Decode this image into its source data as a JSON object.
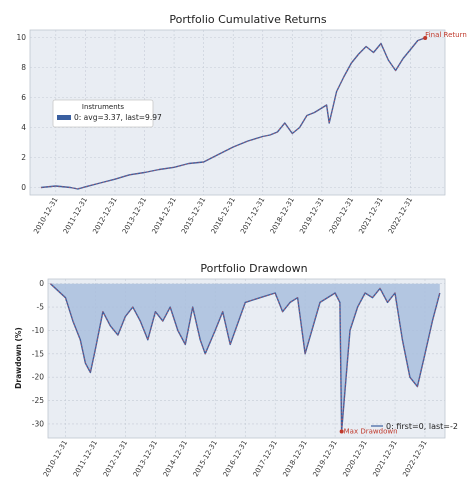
{
  "chart_data": [
    {
      "type": "line",
      "title": "Portfolio Cumulative Returns",
      "xlabel": "",
      "ylabel": "",
      "x_ticks": [
        "2010-12-31",
        "2011-12-31",
        "2012-12-31",
        "2013-12-31",
        "2014-12-31",
        "2015-12-31",
        "2016-12-31",
        "2017-12-31",
        "2018-12-31",
        "2019-12-31",
        "2020-12-31",
        "2021-12-31",
        "2022-12-31"
      ],
      "y_ticks": [
        0,
        2,
        4,
        6,
        8,
        10
      ],
      "ylim": [
        -0.5,
        10.5
      ],
      "grid": true,
      "background": "#e9edf3",
      "legend": {
        "title": "Instruments",
        "placement": "center-left",
        "entries": [
          "0: avg=3.37, last=9.97"
        ]
      },
      "series": [
        {
          "name": "0: avg=3.37, last=9.97",
          "color": "#3a5fa0",
          "x": [
            "2010-06-30",
            "2010-12-31",
            "2011-06-30",
            "2011-09-30",
            "2011-12-31",
            "2012-06-30",
            "2012-12-31",
            "2013-06-30",
            "2013-12-31",
            "2014-06-30",
            "2014-12-31",
            "2015-06-30",
            "2015-12-31",
            "2016-06-30",
            "2016-12-31",
            "2017-06-30",
            "2017-12-31",
            "2018-03-31",
            "2018-06-30",
            "2018-09-30",
            "2018-12-31",
            "2019-03-31",
            "2019-06-30",
            "2019-09-30",
            "2019-12-31",
            "2020-02-28",
            "2020-03-31",
            "2020-06-30",
            "2020-09-30",
            "2020-12-31",
            "2021-03-31",
            "2021-06-30",
            "2021-09-30",
            "2021-12-31",
            "2022-03-31",
            "2022-06-30",
            "2022-09-30",
            "2022-12-31",
            "2023-03-31",
            "2023-06-30"
          ],
          "y": [
            0.0,
            0.1,
            0.0,
            -0.1,
            0.05,
            0.3,
            0.55,
            0.85,
            1.0,
            1.2,
            1.35,
            1.6,
            1.7,
            2.2,
            2.7,
            3.1,
            3.4,
            3.5,
            3.7,
            4.3,
            3.6,
            4.0,
            4.8,
            5.0,
            5.3,
            5.5,
            4.3,
            6.4,
            7.4,
            8.3,
            8.9,
            9.4,
            9.0,
            9.6,
            8.5,
            7.8,
            8.6,
            9.2,
            9.8,
            9.97
          ]
        }
      ],
      "annotations": [
        {
          "text": "Final Return",
          "x": "2023-06-30",
          "y": 9.97,
          "color": "#c0392b"
        }
      ]
    },
    {
      "type": "area",
      "title": "Portfolio Drawdown",
      "xlabel": "",
      "ylabel": "Drawdown (%)",
      "x_ticks": [
        "2010-12-31",
        "2011-12-31",
        "2012-12-31",
        "2013-12-31",
        "2014-12-31",
        "2015-12-31",
        "2016-12-31",
        "2017-12-31",
        "2018-12-31",
        "2019-12-31",
        "2020-12-31",
        "2021-12-31",
        "2022-12-31"
      ],
      "y_ticks": [
        0,
        -5,
        -10,
        -15,
        -20,
        -25,
        -30
      ],
      "ylim": [
        -33,
        1
      ],
      "grid": true,
      "background": "#e9edf3",
      "legend": {
        "placement": "lower-right",
        "entries": [
          "0: first=0, last=-2"
        ]
      },
      "series": [
        {
          "name": "0: first=0, last=-2",
          "color": "#3a5fa0",
          "fill_color": "#a9bedd",
          "x": [
            "2010-06-30",
            "2010-12-31",
            "2011-03-31",
            "2011-06-30",
            "2011-08-31",
            "2011-10-31",
            "2011-12-31",
            "2012-03-31",
            "2012-06-30",
            "2012-09-30",
            "2012-12-31",
            "2013-03-31",
            "2013-06-30",
            "2013-09-30",
            "2013-12-31",
            "2014-03-31",
            "2014-06-30",
            "2014-09-30",
            "2014-12-31",
            "2015-03-31",
            "2015-06-30",
            "2015-08-31",
            "2015-12-31",
            "2016-03-31",
            "2016-06-30",
            "2016-12-31",
            "2017-06-30",
            "2017-12-31",
            "2018-03-31",
            "2018-06-30",
            "2018-09-30",
            "2018-12-31",
            "2019-06-30",
            "2019-12-31",
            "2020-02-28",
            "2020-03-20",
            "2020-06-30",
            "2020-09-30",
            "2020-12-31",
            "2021-03-31",
            "2021-06-30",
            "2021-09-30",
            "2021-12-31",
            "2022-03-31",
            "2022-06-30",
            "2022-09-30",
            "2022-12-31",
            "2023-03-31",
            "2023-06-30"
          ],
          "y": [
            0,
            -3,
            -8,
            -12,
            -17,
            -19,
            -14,
            -6,
            -9,
            -11,
            -7,
            -5,
            -8,
            -12,
            -6,
            -8,
            -5,
            -10,
            -13,
            -5,
            -12,
            -15,
            -10,
            -6,
            -13,
            -4,
            -3,
            -2,
            -6,
            -4,
            -3,
            -15,
            -4,
            -2,
            -4,
            -31.6,
            -10,
            -5,
            -2,
            -3,
            -1,
            -4,
            -2,
            -12,
            -20,
            -22,
            -15,
            -8,
            -2
          ]
        }
      ],
      "annotations": [
        {
          "text": "Max Drawdown",
          "x": "2020-03-20",
          "y": -31.6,
          "color": "#c0392b"
        }
      ]
    }
  ]
}
